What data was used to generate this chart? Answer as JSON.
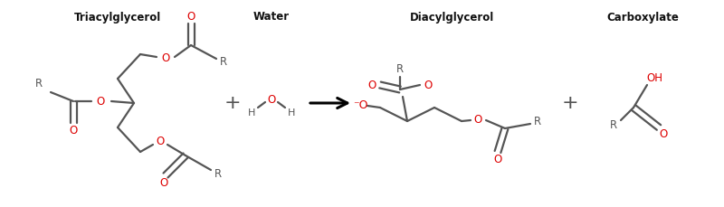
{
  "bg_color": "#ffffff",
  "dark_color": "#555555",
  "red_color": "#dd0000",
  "label_color": "#111111",
  "fig_width": 8.0,
  "fig_height": 2.29,
  "dpi": 100,
  "labels": {
    "triacylglycerol": "Triacylglycerol",
    "water": "Water",
    "diacylglycerol": "Diacylglycerol",
    "carboxylate": "Carboxylate"
  },
  "label_fontsize": 8.5
}
